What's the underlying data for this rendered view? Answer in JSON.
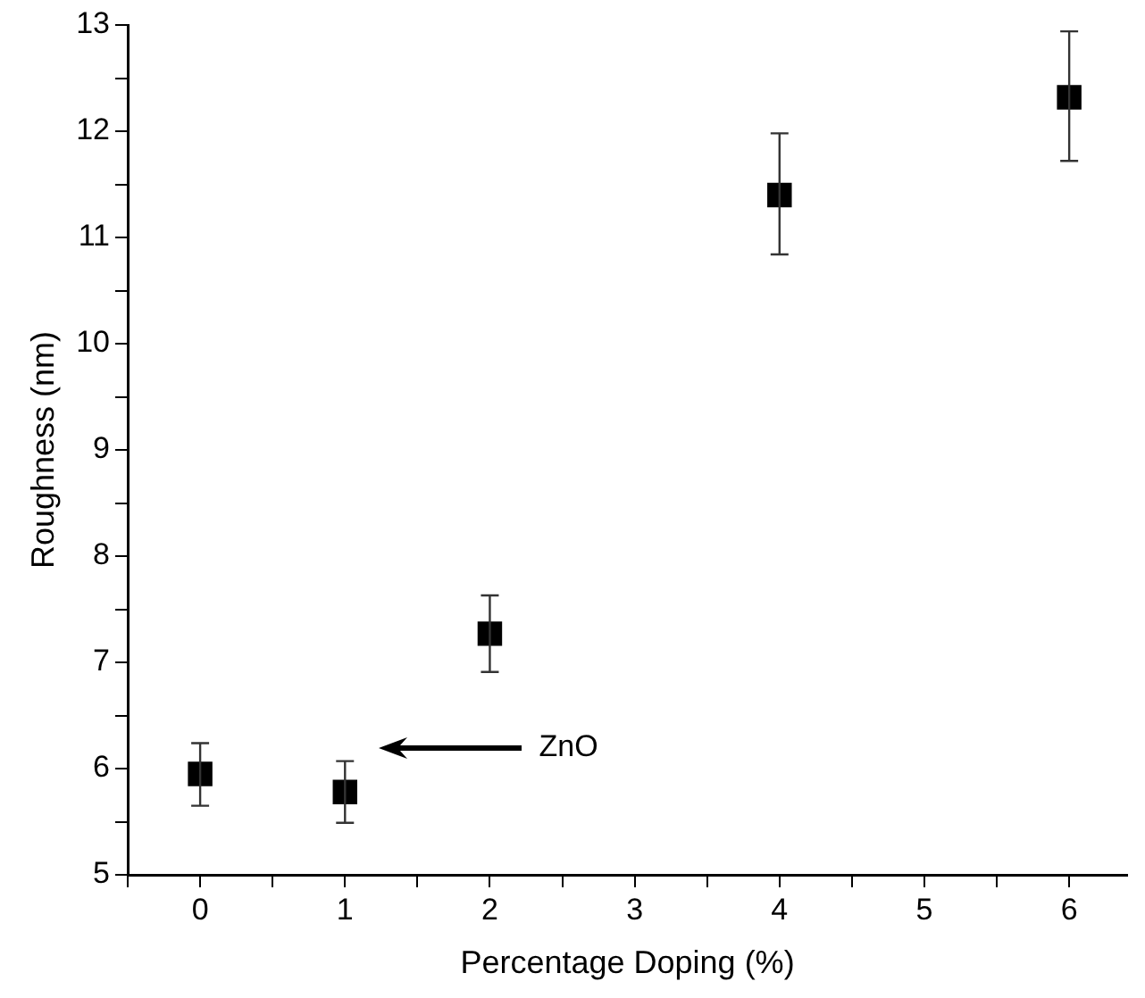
{
  "chart_data": {
    "type": "scatter",
    "xlabel": "Percentage Doping (%)",
    "ylabel": "Roughness (nm)",
    "x": [
      0,
      1,
      2,
      4,
      6
    ],
    "values": [
      5.95,
      5.78,
      7.27,
      11.4,
      12.32
    ],
    "errors": [
      [
        5.65,
        6.24
      ],
      [
        5.49,
        6.07
      ],
      [
        6.91,
        7.63
      ],
      [
        10.84,
        11.98
      ],
      [
        11.72,
        12.94
      ]
    ],
    "color": "#000000",
    "marker": "square",
    "grid": false,
    "legend": false,
    "xlim": [
      -0.5,
      6.4
    ],
    "xticks": [
      {
        "value": -0.5,
        "label": null
      },
      0,
      {
        "value": 0.5,
        "label": null
      },
      1,
      {
        "value": 1.5,
        "label": null
      },
      2,
      {
        "value": 2.5,
        "label": null
      },
      3,
      {
        "value": 3.5,
        "label": null
      },
      4,
      {
        "value": 4.5,
        "label": null
      },
      5,
      {
        "value": 5.5,
        "label": null
      },
      6
    ],
    "ylim": [
      5,
      13
    ],
    "yticks": [
      5,
      {
        "value": 5.5,
        "label": null
      },
      6,
      {
        "value": 6.5,
        "label": null
      },
      7,
      {
        "value": 7.5,
        "label": null
      },
      8,
      {
        "value": 8.5,
        "label": null
      },
      9,
      {
        "value": 9.5,
        "label": null
      },
      10,
      {
        "value": 10.5,
        "label": null
      },
      11,
      {
        "value": 11.5,
        "label": null
      },
      12,
      {
        "value": 12.5,
        "label": null
      },
      13
    ],
    "annotations": [
      "ZnO"
    ]
  }
}
